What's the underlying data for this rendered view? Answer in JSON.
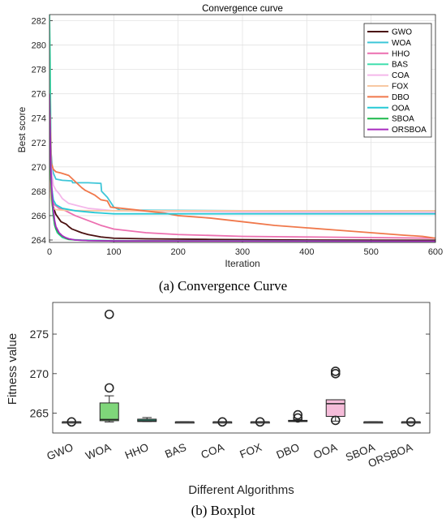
{
  "captions": {
    "a_label": "(a)",
    "a_text": "Convergence Curve",
    "b_label": "(b)",
    "b_text": "Boxplot"
  },
  "chart_data": [
    {
      "type": "line",
      "title": "Convergence curve",
      "xlabel": "Iteration",
      "ylabel": "Best score",
      "xlim": [
        0,
        600
      ],
      "ylim": [
        263.8,
        282.5
      ],
      "xticks": [
        0,
        100,
        200,
        300,
        400,
        500,
        600
      ],
      "yticks": [
        264,
        266,
        268,
        270,
        272,
        274,
        276,
        278,
        280,
        282
      ],
      "ytick_labels": [
        "264",
        "266",
        "268",
        "270",
        "272",
        "274",
        "276",
        "278",
        "280",
        "282"
      ],
      "grid": true,
      "legend_position": "top-right",
      "series": [
        {
          "name": "GWO",
          "color": "#4a1010",
          "x": [
            0,
            2,
            4,
            6,
            8,
            10,
            14,
            18,
            22,
            26,
            30,
            35,
            40,
            45,
            50,
            60,
            70,
            80,
            100,
            150,
            250,
            400,
            600
          ],
          "y": [
            276,
            268.2,
            267.2,
            266.7,
            266.4,
            266.1,
            265.8,
            265.5,
            265.4,
            265.3,
            265.1,
            264.9,
            264.8,
            264.7,
            264.6,
            264.45,
            264.35,
            264.25,
            264.15,
            264.1,
            264.05,
            264.0,
            263.98
          ]
        },
        {
          "name": "WOA",
          "color": "#3ec6d8",
          "x": [
            0,
            2,
            4,
            6,
            10,
            20,
            35,
            36,
            60,
            80,
            81,
            90,
            100,
            110,
            300,
            600
          ],
          "y": [
            276,
            271.5,
            270.2,
            269.5,
            269.0,
            268.9,
            268.85,
            268.7,
            268.7,
            268.65,
            268.0,
            267.5,
            266.7,
            266.45,
            266.4,
            266.4
          ]
        },
        {
          "name": "HHO",
          "color": "#ec6fb0",
          "x": [
            0,
            2,
            4,
            6,
            10,
            15,
            25,
            40,
            60,
            80,
            100,
            150,
            200,
            300,
            400,
            500,
            600
          ],
          "y": [
            276,
            268.5,
            267.5,
            267.0,
            266.8,
            266.6,
            266.4,
            266.0,
            265.6,
            265.2,
            264.9,
            264.6,
            264.45,
            264.3,
            264.25,
            264.2,
            264.15
          ]
        },
        {
          "name": "BAS",
          "color": "#41dfae",
          "x": [
            0,
            1,
            2,
            3,
            5,
            8,
            12,
            20,
            30,
            50,
            100,
            600
          ],
          "y": [
            282.5,
            279,
            273,
            268.5,
            266.5,
            265.2,
            264.6,
            264.2,
            264.05,
            264.0,
            263.95,
            263.9
          ]
        },
        {
          "name": "COA",
          "color": "#f4b7ea",
          "x": [
            0,
            3,
            6,
            10,
            15,
            20,
            30,
            60,
            100,
            300,
            600
          ],
          "y": [
            276,
            270,
            268.5,
            268.1,
            267.8,
            267.4,
            267.0,
            266.6,
            266.4,
            266.3,
            266.25
          ]
        },
        {
          "name": "FOX",
          "color": "#f7c8a2",
          "x": [
            0,
            2,
            4,
            6,
            10,
            20,
            40,
            100,
            600
          ],
          "y": [
            276,
            267.5,
            266.8,
            266.6,
            266.5,
            266.45,
            266.42,
            266.4,
            266.4
          ]
        },
        {
          "name": "DBO",
          "color": "#f0784b",
          "x": [
            0,
            3,
            6,
            10,
            18,
            30,
            40,
            50,
            55,
            70,
            80,
            90,
            95,
            130,
            180,
            200,
            250,
            300,
            350,
            400,
            450,
            500,
            550,
            580,
            600
          ],
          "y": [
            276,
            270.3,
            269.8,
            269.6,
            269.5,
            269.3,
            268.8,
            268.3,
            268.1,
            267.7,
            267.3,
            267.2,
            266.7,
            266.5,
            266.2,
            266.0,
            265.8,
            265.5,
            265.2,
            265.0,
            264.8,
            264.6,
            264.4,
            264.3,
            264.15
          ]
        },
        {
          "name": "OOA",
          "color": "#27c9d6",
          "x": [
            0,
            3,
            6,
            10,
            20,
            40,
            70,
            100,
            600
          ],
          "y": [
            276,
            268.5,
            267.3,
            266.9,
            266.6,
            266.4,
            266.25,
            266.15,
            266.15
          ]
        },
        {
          "name": "SBOA",
          "color": "#1db84b",
          "x": [
            0,
            2,
            4,
            6,
            8,
            10,
            15,
            20,
            25,
            30,
            40,
            60,
            100,
            600
          ],
          "y": [
            276,
            269,
            267.2,
            266.0,
            265.3,
            264.9,
            264.5,
            264.3,
            264.15,
            264.05,
            264.0,
            263.95,
            263.92,
            263.9
          ]
        },
        {
          "name": "ORSBOA",
          "color": "#a82bbf",
          "x": [
            0,
            2,
            4,
            6,
            8,
            10,
            15,
            20,
            25,
            30,
            40,
            60,
            100,
            600
          ],
          "y": [
            276,
            270,
            267.8,
            266.5,
            265.6,
            265.1,
            264.6,
            264.35,
            264.2,
            264.1,
            264.0,
            263.95,
            263.92,
            263.9
          ]
        }
      ]
    },
    {
      "type": "box",
      "xlabel": "Different Algorithms",
      "ylabel": "Fitness value",
      "ylim": [
        262.5,
        279
      ],
      "yticks": [
        265,
        270,
        275
      ],
      "categories": [
        "GWO",
        "WOA",
        "HHO",
        "BAS",
        "COA",
        "FOX",
        "DBO",
        "OOA",
        "SBOA",
        "ORSBOA"
      ],
      "boxes": [
        {
          "name": "GWO",
          "min": 263.9,
          "q1": 263.9,
          "median": 263.9,
          "q3": 263.9,
          "max": 263.9,
          "outliers": [
            263.9
          ],
          "fill": "none"
        },
        {
          "name": "WOA",
          "min": 263.9,
          "q1": 264.05,
          "median": 264.2,
          "q3": 266.3,
          "max": 267.2,
          "outliers": [
            268.2,
            277.5
          ],
          "fill": "#7fd67a"
        },
        {
          "name": "HHO",
          "min": 263.95,
          "q1": 263.95,
          "median": 264.0,
          "q3": 264.25,
          "max": 264.45,
          "outliers": [],
          "fill": "#2f7f68"
        },
        {
          "name": "BAS",
          "min": 263.9,
          "q1": 263.9,
          "median": 263.9,
          "q3": 263.9,
          "max": 263.9,
          "outliers": [],
          "fill": "none"
        },
        {
          "name": "COA",
          "min": 263.9,
          "q1": 263.9,
          "median": 263.9,
          "q3": 263.9,
          "max": 263.9,
          "outliers": [
            263.9
          ],
          "fill": "none"
        },
        {
          "name": "FOX",
          "min": 263.9,
          "q1": 263.9,
          "median": 263.9,
          "q3": 263.9,
          "max": 263.9,
          "outliers": [
            263.9
          ],
          "fill": "none"
        },
        {
          "name": "DBO",
          "min": 263.95,
          "q1": 263.95,
          "median": 264.0,
          "q3": 264.1,
          "max": 264.2,
          "outliers": [
            264.4,
            264.8
          ],
          "fill": "#2f7f68"
        },
        {
          "name": "OOA",
          "min": 264.0,
          "q1": 264.6,
          "median": 266.2,
          "q3": 266.7,
          "max": 266.7,
          "outliers": [
            264.1,
            270.0,
            270.3
          ],
          "fill": "#f5bcd9"
        },
        {
          "name": "SBOA",
          "min": 263.9,
          "q1": 263.9,
          "median": 263.9,
          "q3": 263.9,
          "max": 263.9,
          "outliers": [],
          "fill": "none"
        },
        {
          "name": "ORSBOA",
          "min": 263.9,
          "q1": 263.9,
          "median": 263.9,
          "q3": 263.9,
          "max": 263.9,
          "outliers": [
            263.9
          ],
          "fill": "none"
        }
      ]
    }
  ]
}
